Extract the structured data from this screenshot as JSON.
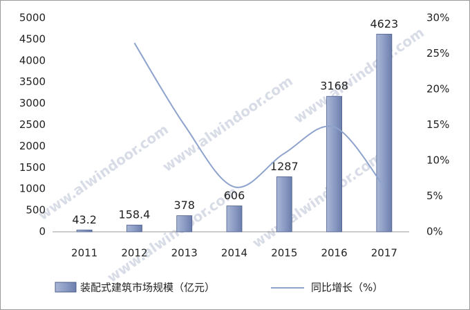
{
  "chart_data": {
    "type": "bar",
    "categories": [
      "2011",
      "2012",
      "2013",
      "2014",
      "2015",
      "2016",
      "2017"
    ],
    "series": [
      {
        "name": "装配式建筑市场规模（亿元）",
        "color": "#8c9cc4",
        "values": [
          43.2,
          158.4,
          378,
          606,
          1287,
          3168,
          4623
        ]
      },
      {
        "name": "同比增长（%）",
        "color": "#8ea3cc",
        "type": "line",
        "axis": "y2",
        "values": [
          null,
          26.5,
          15,
          6.3,
          11,
          14.7,
          6.3
        ]
      }
    ],
    "ylim": [
      0,
      5000
    ],
    "yticks": [
      0,
      500,
      1000,
      1500,
      2000,
      2500,
      3000,
      3500,
      4000,
      4500,
      5000
    ],
    "y2lim": [
      0,
      30
    ],
    "y2ticks": [
      {
        "value": 0,
        "label": "0%"
      },
      {
        "value": 5,
        "label": "5%"
      },
      {
        "value": 10,
        "label": "10%"
      },
      {
        "value": 15,
        "label": "15%"
      },
      {
        "value": 20,
        "label": "20%"
      },
      {
        "value": 25,
        "label": "25%"
      },
      {
        "value": 30,
        "label": "30%"
      }
    ],
    "watermark": "www.alwindoor.com",
    "grid": false,
    "legend": "bottom"
  }
}
